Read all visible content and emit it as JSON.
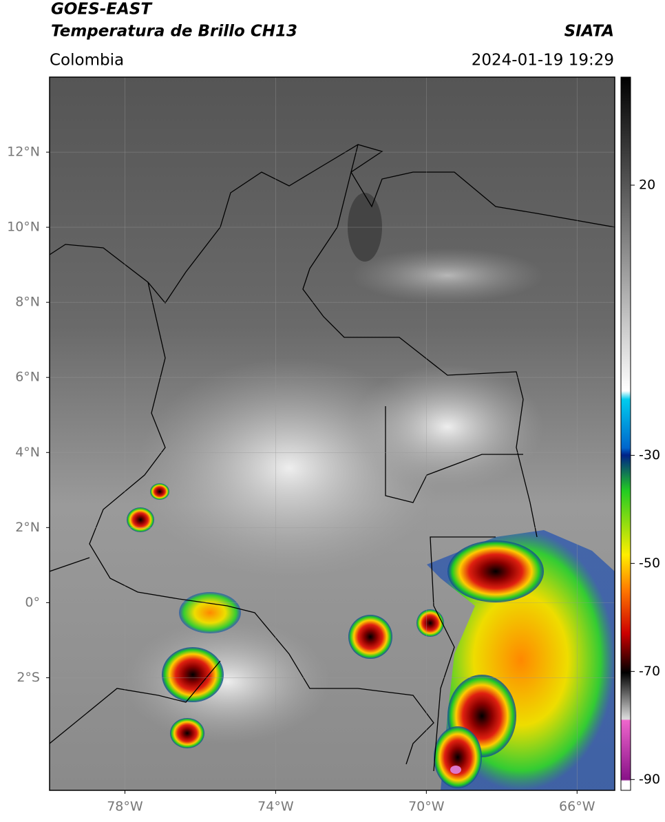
{
  "header": {
    "title": "GOES-EAST",
    "subtitle": "Temperatura de Brillo CH13",
    "source": "SIATA",
    "region": "Colombia",
    "datetime": "2024-01-19 19:29"
  },
  "map": {
    "lonlim": [
      -80,
      -65
    ],
    "latlim": [
      -5,
      14
    ],
    "lon_ticks": [
      {
        "value": -78,
        "label": "78°W"
      },
      {
        "value": -74,
        "label": "74°W"
      },
      {
        "value": -70,
        "label": "70°W"
      },
      {
        "value": -66,
        "label": "66°W"
      }
    ],
    "lat_ticks": [
      {
        "value": 12,
        "label": "12°N"
      },
      {
        "value": 10,
        "label": "10°N"
      },
      {
        "value": 8,
        "label": "8°N"
      },
      {
        "value": 6,
        "label": "6°N"
      },
      {
        "value": 4,
        "label": "4°N"
      },
      {
        "value": 2,
        "label": "2°N"
      },
      {
        "value": 0,
        "label": "0°"
      },
      {
        "value": -2,
        "label": "2°S"
      }
    ],
    "grid": true
  },
  "colorbar": {
    "lim": [
      -92,
      40
    ],
    "ticks": [
      20,
      -30,
      -50,
      -70,
      -90
    ]
  }
}
